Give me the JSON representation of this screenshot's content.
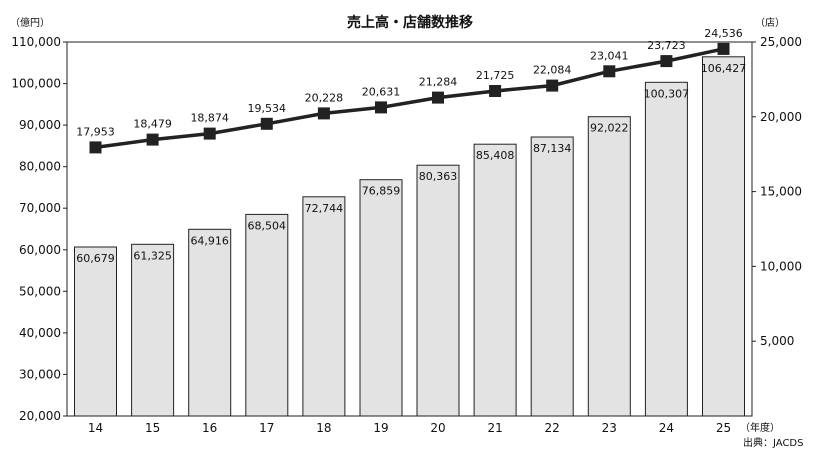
{
  "chart_data": {
    "type": "bar+line",
    "title": "売上高・店舗数推移",
    "left_unit": "（億円）",
    "right_unit": "（店）",
    "x_unit": "（年度）",
    "source": "出典：JACDS",
    "categories": [
      "14",
      "15",
      "16",
      "17",
      "18",
      "19",
      "20",
      "21",
      "22",
      "23",
      "24",
      "25"
    ],
    "y_left": {
      "min": 20000,
      "max": 110000,
      "ticks": [
        "20,000",
        "30,000",
        "40,000",
        "50,000",
        "60,000",
        "70,000",
        "80,000",
        "90,000",
        "100,000",
        "110,000"
      ]
    },
    "y_right": {
      "min": 0,
      "max": 25000,
      "ticks": [
        "5,000",
        "10,000",
        "15,000",
        "20,000",
        "25,000"
      ]
    },
    "series": [
      {
        "kind": "bar",
        "axis": "left",
        "values": [
          60679,
          61325,
          64916,
          68504,
          72744,
          76859,
          80363,
          85408,
          87134,
          92022,
          100307,
          106427
        ],
        "labels": [
          "60,679",
          "61,325",
          "64,916",
          "68,504",
          "72,744",
          "76,859",
          "80,363",
          "85,408",
          "87,134",
          "92,022",
          "100,307",
          "106,427"
        ]
      },
      {
        "kind": "line",
        "axis": "right",
        "values": [
          17953,
          18479,
          18874,
          19534,
          20228,
          20631,
          21284,
          21725,
          22084,
          23041,
          23723,
          24536
        ],
        "labels": [
          "17,953",
          "18,479",
          "18,874",
          "19,534",
          "20,228",
          "20,631",
          "21,284",
          "21,725",
          "22,084",
          "23,041",
          "23,723",
          "24,536"
        ]
      }
    ],
    "grid": false
  }
}
